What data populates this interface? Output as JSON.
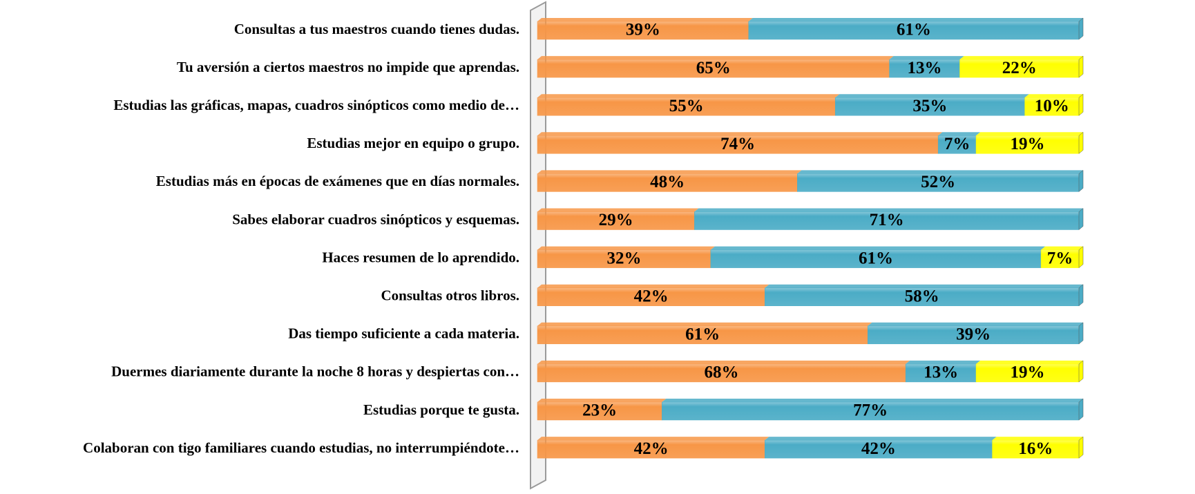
{
  "chart_data": {
    "type": "stacked-bar-horizontal",
    "categories": [
      "Consultas a tus maestros cuando tienes dudas.",
      "Tu aversión a ciertos maestros no impide que aprendas.",
      "Estudias las gráficas, mapas, cuadros sinópticos como medio de…",
      "Estudias mejor en equipo o grupo.",
      "Estudias más en épocas de exámenes que en días normales.",
      "Sabes elaborar cuadros sinópticos y esquemas.",
      "Haces resumen de lo aprendido.",
      "Consultas otros libros.",
      "Das tiempo suficiente a cada materia.",
      "Duermes diariamente durante la noche 8 horas y despiertas con…",
      "Estudias porque te gusta.",
      "Colaboran con tigo familiares cuando estudias, no interrumpiéndote…"
    ],
    "series": [
      {
        "color": "#f79646",
        "values": [
          39,
          65,
          55,
          74,
          48,
          29,
          32,
          42,
          61,
          68,
          23,
          42
        ],
        "value_labels": [
          "39%",
          "65%",
          "55%",
          "74%",
          "48%",
          "29%",
          "32%",
          "42%",
          "61%",
          "68%",
          "23%",
          "42%"
        ]
      },
      {
        "color": "#4bacc6",
        "values": [
          61,
          13,
          35,
          7,
          52,
          71,
          61,
          58,
          39,
          13,
          77,
          42
        ],
        "value_labels": [
          "61%",
          "13%",
          "35%",
          "7%",
          "52%",
          "71%",
          "61%",
          "58%",
          "39%",
          "13%",
          "77%",
          "42%"
        ]
      },
      {
        "color": "#ffff00",
        "values": [
          null,
          22,
          10,
          19,
          null,
          null,
          7,
          null,
          null,
          19,
          null,
          16
        ],
        "value_labels": [
          null,
          "22%",
          "10%",
          "19%",
          null,
          null,
          "7%",
          null,
          null,
          "19%",
          null,
          "16%"
        ]
      }
    ],
    "xlim": [
      0,
      100
    ]
  }
}
